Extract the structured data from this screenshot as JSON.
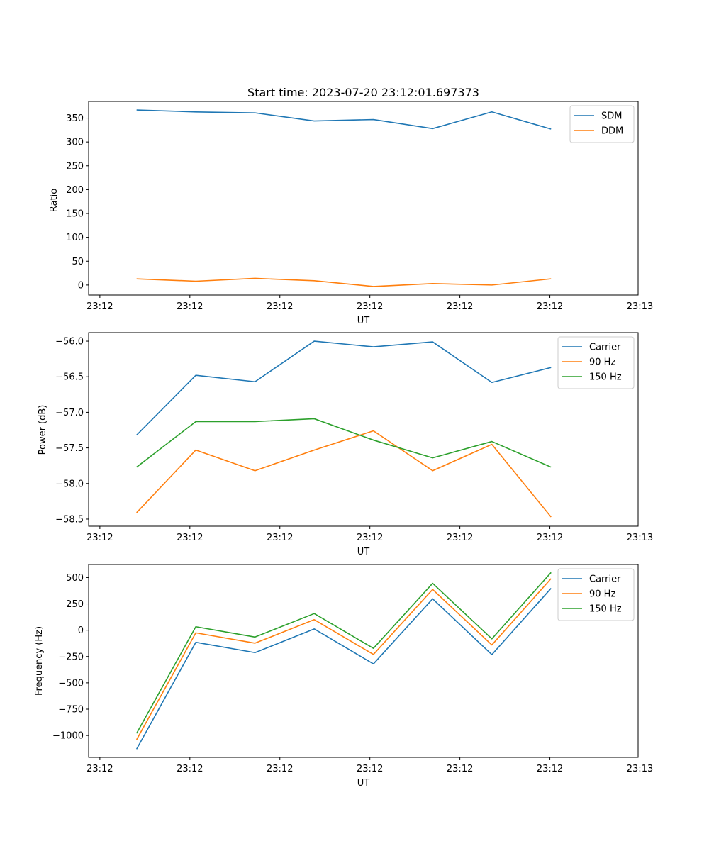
{
  "chart_data": [
    {
      "type": "line",
      "title": "Start time: 2023-07-20 23:12:01.697373",
      "xlabel": "UT",
      "ylabel": "Ratio",
      "x": [
        1,
        2,
        3,
        4,
        5,
        6,
        7,
        8
      ],
      "xlim": [
        0.19,
        9.47
      ],
      "xticks": [
        0.38,
        1.9,
        3.42,
        4.94,
        6.46,
        7.98,
        9.5
      ],
      "xticklabels": [
        "23:12",
        "23:12",
        "23:12",
        "23:12",
        "23:12",
        "23:12",
        "23:13"
      ],
      "ylim": [
        -21,
        385
      ],
      "yticks": [
        0,
        50,
        100,
        150,
        200,
        250,
        300,
        350
      ],
      "yticklabels": [
        "0",
        "50",
        "100",
        "150",
        "200",
        "250",
        "300",
        "350"
      ],
      "legend_position": "top-right",
      "series": [
        {
          "name": "SDM",
          "color": "#1f77b4",
          "values": [
            367,
            363,
            361,
            344,
            347,
            328,
            363,
            327
          ]
        },
        {
          "name": "DDM",
          "color": "#ff7f0e",
          "values": [
            13,
            8,
            14,
            9,
            -3,
            3,
            0,
            13
          ]
        }
      ]
    },
    {
      "type": "line",
      "title": "",
      "xlabel": "UT",
      "ylabel": "Power (dB)",
      "x": [
        1,
        2,
        3,
        4,
        5,
        6,
        7,
        8
      ],
      "xlim": [
        0.19,
        9.47
      ],
      "xticks": [
        0.38,
        1.9,
        3.42,
        4.94,
        6.46,
        7.98,
        9.5
      ],
      "xticklabels": [
        "23:12",
        "23:12",
        "23:12",
        "23:12",
        "23:12",
        "23:12",
        "23:13"
      ],
      "ylim": [
        -58.6,
        -55.88
      ],
      "yticks": [
        -58.5,
        -58.0,
        -57.5,
        -57.0,
        -56.5,
        -56.0
      ],
      "yticklabels": [
        "−58.5",
        "−58.0",
        "−57.5",
        "−57.0",
        "−56.5",
        "−56.0"
      ],
      "legend_position": "top-right",
      "series": [
        {
          "name": "Carrier",
          "color": "#1f77b4",
          "values": [
            -57.32,
            -56.48,
            -56.57,
            -56.0,
            -56.08,
            -56.01,
            -56.58,
            -56.37
          ]
        },
        {
          "name": "90 Hz",
          "color": "#ff7f0e",
          "values": [
            -58.41,
            -57.53,
            -57.82,
            -57.53,
            -57.26,
            -57.82,
            -57.45,
            -58.47
          ]
        },
        {
          "name": "150 Hz",
          "color": "#2ca02c",
          "values": [
            -57.77,
            -57.13,
            -57.13,
            -57.09,
            -57.39,
            -57.64,
            -57.41,
            -57.77
          ]
        }
      ]
    },
    {
      "type": "line",
      "title": "",
      "xlabel": "UT",
      "ylabel": "Frequency (Hz)",
      "x": [
        1,
        2,
        3,
        4,
        5,
        6,
        7,
        8
      ],
      "xlim": [
        0.19,
        9.47
      ],
      "xticks": [
        0.38,
        1.9,
        3.42,
        4.94,
        6.46,
        7.98,
        9.5
      ],
      "xticklabels": [
        "23:12",
        "23:12",
        "23:12",
        "23:12",
        "23:12",
        "23:12",
        "23:13"
      ],
      "ylim": [
        -1208,
        624
      ],
      "yticks": [
        -1000,
        -750,
        -500,
        -250,
        0,
        250,
        500
      ],
      "yticklabels": [
        "−1000",
        "−750",
        "−500",
        "−250",
        "0",
        "250",
        "500"
      ],
      "legend_position": "top-right",
      "series": [
        {
          "name": "Carrier",
          "color": "#1f77b4",
          "values": [
            -1130,
            -115,
            -213,
            12,
            -320,
            298,
            -232,
            398
          ]
        },
        {
          "name": "90 Hz",
          "color": "#ff7f0e",
          "values": [
            -1040,
            -25,
            -123,
            100,
            -230,
            387,
            -140,
            490
          ]
        },
        {
          "name": "150 Hz",
          "color": "#2ca02c",
          "values": [
            -980,
            33,
            -65,
            158,
            -172,
            445,
            -82,
            548
          ]
        }
      ]
    }
  ]
}
